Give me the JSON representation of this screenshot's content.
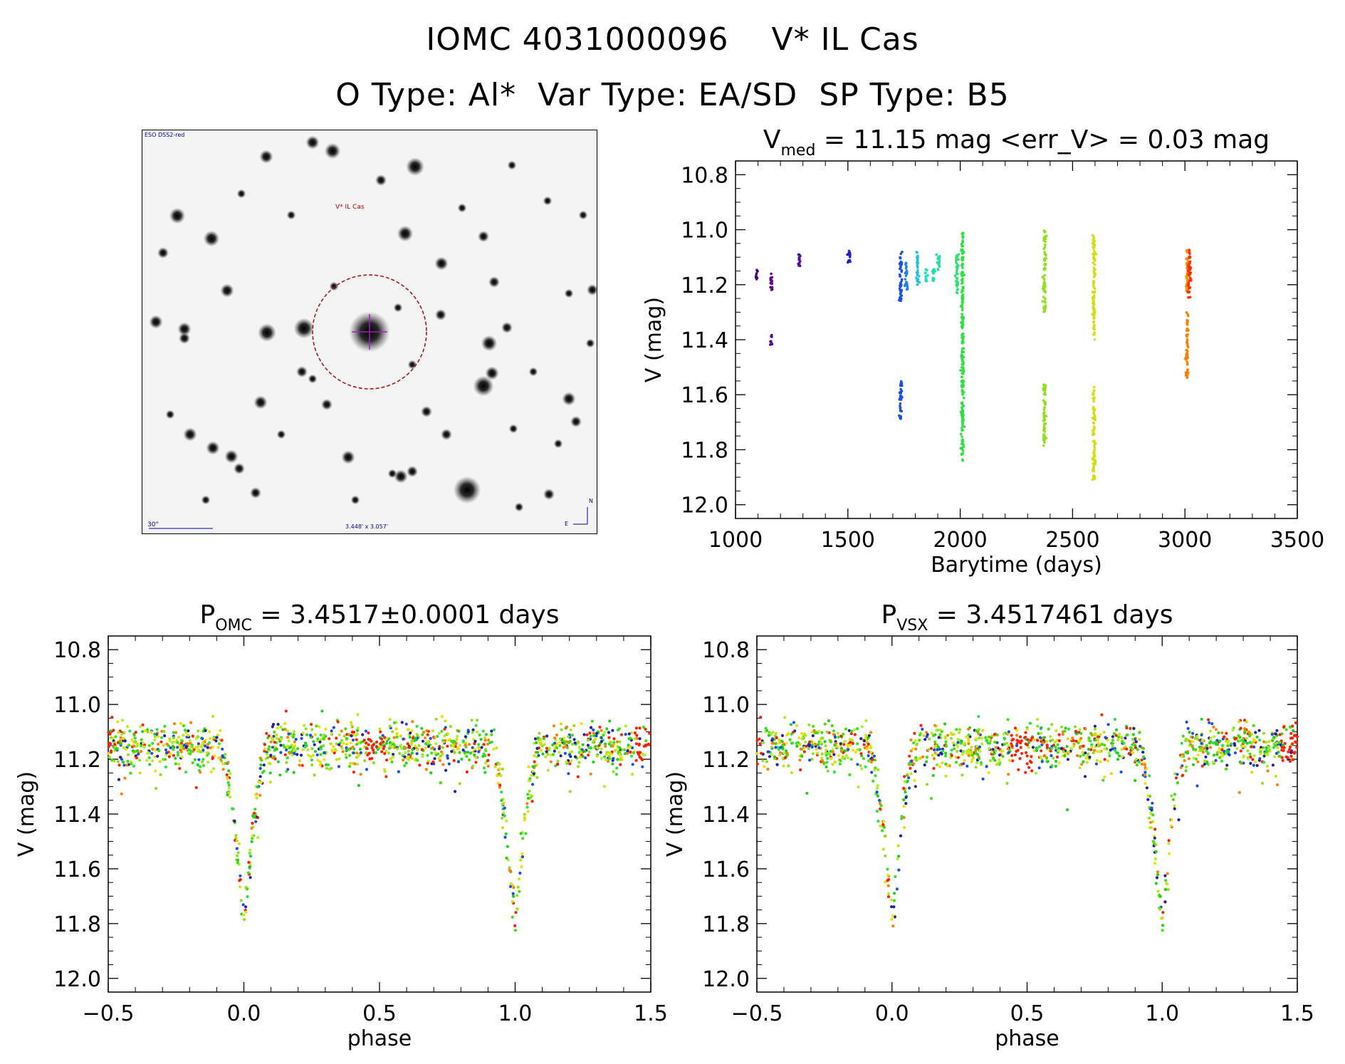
{
  "header": {
    "line1_id": "IOMC 4031000096",
    "line1_name": "V* IL Cas",
    "line2": "O Type: Al*  Var Type: EA/SD  SP Type: B5"
  },
  "sky_image": {
    "survey_label": "ESO DSS2-red",
    "target_label": "V* IL Cas",
    "scale_label": "30\"",
    "fov_label": "3.448' x 3.057'",
    "north_label": "N",
    "east_label": "E"
  },
  "colors": {
    "background": "#ffffff",
    "axis": "#000000",
    "circle": "#a01010",
    "crosshair": "#a020c0",
    "annotation_blue": "#0000a0"
  },
  "chart_data": [
    {
      "id": "lightcurve",
      "type": "scatter",
      "title_main": "V",
      "title_sub": "med",
      "title_rest": " = 11.15 mag <err_V> = 0.03 mag",
      "xlabel": "Barytime (days)",
      "ylabel": "V (mag)",
      "xlim": [
        1000,
        3500
      ],
      "ylim": [
        12.05,
        10.75
      ],
      "xticks": [
        1000,
        1500,
        2000,
        2500,
        3000,
        3500
      ],
      "xtick_labels": [
        "1000",
        "1500",
        "2000",
        "2500",
        "3000",
        "3500"
      ],
      "yticks": [
        10.8,
        11.0,
        11.2,
        11.4,
        11.6,
        11.8,
        12.0
      ],
      "ytick_labels": [
        "10.8",
        "11.0",
        "11.2",
        "11.4",
        "11.6",
        "11.8",
        "12.0"
      ],
      "color_scale": "rainbow by time (purple early to red late)",
      "segments": [
        {
          "t": 1095,
          "vmin": 11.14,
          "vmax": 11.18,
          "color": "#4b0070"
        },
        {
          "t": 1160,
          "vmin": 11.16,
          "vmax": 11.22,
          "color": "#5a0090"
        },
        {
          "t": 1160,
          "vmin": 11.38,
          "vmax": 11.42,
          "color": "#5a0090"
        },
        {
          "t": 1285,
          "vmin": 11.09,
          "vmax": 11.14,
          "color": "#5010a0"
        },
        {
          "t": 1505,
          "vmin": 11.07,
          "vmax": 11.13,
          "color": "#2020c0"
        },
        {
          "t": 1735,
          "vmin": 11.08,
          "vmax": 11.26,
          "color": "#1a50e0"
        },
        {
          "t": 1735,
          "vmin": 11.55,
          "vmax": 11.69,
          "color": "#1a50e0"
        },
        {
          "t": 1760,
          "vmin": 11.12,
          "vmax": 11.22,
          "color": "#2080f0"
        },
        {
          "t": 1810,
          "vmin": 11.08,
          "vmax": 11.2,
          "color": "#20c0e0"
        },
        {
          "t": 1850,
          "vmin": 11.14,
          "vmax": 11.19,
          "color": "#20e0c0"
        },
        {
          "t": 1880,
          "vmin": 11.14,
          "vmax": 11.19,
          "color": "#20e0b0"
        },
        {
          "t": 1905,
          "vmin": 11.09,
          "vmax": 11.15,
          "color": "#20e0a0"
        },
        {
          "t": 1985,
          "vmin": 11.09,
          "vmax": 11.24,
          "color": "#30e070"
        },
        {
          "t": 2010,
          "vmin": 11.01,
          "vmax": 11.84,
          "color": "#30e040"
        },
        {
          "t": 2375,
          "vmin": 10.99,
          "vmax": 11.3,
          "color": "#90e020"
        },
        {
          "t": 2375,
          "vmin": 11.56,
          "vmax": 11.79,
          "color": "#90e020"
        },
        {
          "t": 2595,
          "vmin": 11.02,
          "vmax": 11.4,
          "color": "#d0e010"
        },
        {
          "t": 2595,
          "vmin": 11.57,
          "vmax": 11.91,
          "color": "#d0e010"
        },
        {
          "t": 3010,
          "vmin": 11.06,
          "vmax": 11.23,
          "color": "#ff9000"
        },
        {
          "t": 3010,
          "vmin": 11.3,
          "vmax": 11.54,
          "color": "#ff8000"
        },
        {
          "t": 3020,
          "vmin": 11.07,
          "vmax": 11.25,
          "color": "#ff3000"
        }
      ]
    },
    {
      "id": "phase_omc",
      "type": "scatter",
      "title_main": "P",
      "title_sub": "OMC",
      "title_rest": " = 3.4517±0.0001 days",
      "xlabel": "phase",
      "ylabel": "V (mag)",
      "xlim": [
        -0.5,
        1.5
      ],
      "ylim": [
        12.05,
        10.75
      ],
      "xticks": [
        -0.5,
        0.0,
        0.5,
        1.0,
        1.5
      ],
      "xtick_labels": [
        "−0.5",
        "0.0",
        "0.5",
        "1.0",
        "1.5"
      ],
      "yticks": [
        10.8,
        11.0,
        11.2,
        11.4,
        11.6,
        11.8,
        12.0
      ],
      "ytick_labels": [
        "10.8",
        "11.0",
        "11.2",
        "11.4",
        "11.6",
        "11.8",
        "12.0"
      ],
      "baseline_mag": 11.15,
      "min_mag": 11.8,
      "eclipse_phase": 0.0,
      "eclipse_halfwidth": 0.09
    },
    {
      "id": "phase_vsx",
      "type": "scatter",
      "title_main": "P",
      "title_sub": "VSX",
      "title_rest": " = 3.4517461 days",
      "xlabel": "phase",
      "ylabel": "V (mag)",
      "xlim": [
        -0.5,
        1.5
      ],
      "ylim": [
        12.05,
        10.75
      ],
      "xticks": [
        -0.5,
        0.0,
        0.5,
        1.0,
        1.5
      ],
      "xtick_labels": [
        "−0.5",
        "0.0",
        "0.5",
        "1.0",
        "1.5"
      ],
      "yticks": [
        10.8,
        11.0,
        11.2,
        11.4,
        11.6,
        11.8,
        12.0
      ],
      "ytick_labels": [
        "10.8",
        "11.0",
        "11.2",
        "11.4",
        "11.6",
        "11.8",
        "12.0"
      ],
      "baseline_mag": 11.15,
      "min_mag": 11.8,
      "eclipse_phase": 0.0,
      "eclipse_halfwidth": 0.09
    }
  ]
}
